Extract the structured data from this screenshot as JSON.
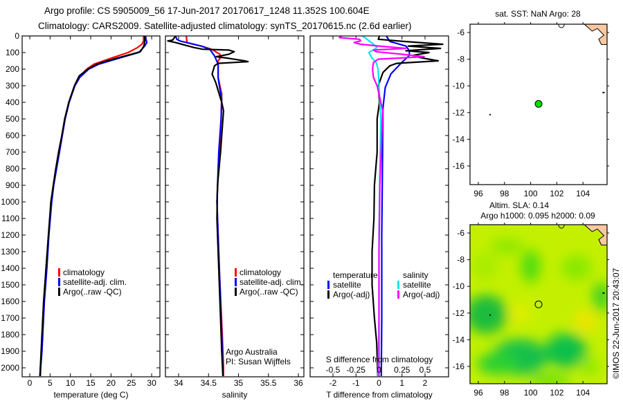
{
  "title": {
    "line1": "Argo profile: CS 5905009_56 17-Jun-2017 20170617_1248 11.352S 100.604E",
    "line2": "Climatology: CARS2009. Satellite-adjusted climatology: synTS_20170615.nc (2.6d earlier)"
  },
  "copyright": "©IMOS 22-Jun-2017 20:43:07",
  "chart_data": [
    {
      "id": "temperature",
      "type": "line",
      "xlabel": "temperature (deg C)",
      "ylabel": "",
      "xlim": [
        -1.9,
        32
      ],
      "ylim": [
        2060,
        0
      ],
      "xticks": [
        "0",
        "5",
        "10",
        "15",
        "20",
        "25",
        "30"
      ],
      "yticks": [
        "0",
        "100",
        "200",
        "300",
        "400",
        "500",
        "600",
        "700",
        "800",
        "900",
        "1000",
        "1100",
        "1200",
        "1300",
        "1400",
        "1500",
        "1600",
        "1700",
        "1800",
        "1900",
        "2000"
      ],
      "legend": [
        "climatology",
        "satellite-adj. clim.",
        "Argo(..raw -QC)"
      ],
      "series": [
        {
          "name": "climatology",
          "color": "#ff0000",
          "points": [
            [
              0,
              28.0
            ],
            [
              30,
              28.0
            ],
            [
              50,
              27.6
            ],
            [
              70,
              26.5
            ],
            [
              100,
              24.2
            ],
            [
              130,
              20.5
            ],
            [
              170,
              15.8
            ],
            [
              200,
              14.0
            ],
            [
              250,
              12.0
            ],
            [
              300,
              11.0
            ],
            [
              400,
              9.6
            ],
            [
              500,
              8.6
            ],
            [
              600,
              7.9
            ],
            [
              700,
              7.1
            ],
            [
              800,
              6.4
            ],
            [
              900,
              5.8
            ],
            [
              1000,
              5.3
            ],
            [
              1200,
              4.6
            ],
            [
              1400,
              4.0
            ],
            [
              1600,
              3.5
            ],
            [
              1800,
              3.1
            ],
            [
              1900,
              2.9
            ],
            [
              2000,
              2.6
            ],
            [
              2050,
              2.5
            ]
          ]
        },
        {
          "name": "satellite-adj. clim.",
          "color": "#0000ff",
          "points": [
            [
              0,
              28.5
            ],
            [
              20,
              28.6
            ],
            [
              40,
              28.8
            ],
            [
              60,
              28.3
            ],
            [
              80,
              27.6
            ],
            [
              100,
              26.8
            ],
            [
              130,
              22.5
            ],
            [
              170,
              17.0
            ],
            [
              200,
              14.5
            ],
            [
              250,
              12.3
            ],
            [
              300,
              11.1
            ],
            [
              400,
              9.7
            ],
            [
              500,
              8.7
            ],
            [
              600,
              8.0
            ],
            [
              700,
              7.3
            ],
            [
              800,
              6.6
            ],
            [
              900,
              5.9
            ],
            [
              1000,
              5.4
            ],
            [
              1200,
              4.7
            ],
            [
              1400,
              4.2
            ],
            [
              1600,
              3.6
            ],
            [
              1800,
              3.2
            ],
            [
              1900,
              3.0
            ],
            [
              2000,
              2.7
            ],
            [
              2050,
              2.6
            ]
          ]
        },
        {
          "name": "Argo(..raw -QC)",
          "color": "#000000",
          "points": [
            [
              0,
              28.3
            ],
            [
              30,
              28.3
            ],
            [
              60,
              28.1
            ],
            [
              80,
              27.6
            ],
            [
              95,
              27.2
            ],
            [
              110,
              25.0
            ],
            [
              130,
              22.0
            ],
            [
              150,
              19.0
            ],
            [
              170,
              16.5
            ],
            [
              200,
              14.3
            ],
            [
              240,
              12.2
            ],
            [
              300,
              11.0
            ],
            [
              400,
              9.6
            ],
            [
              500,
              8.6
            ],
            [
              600,
              7.9
            ],
            [
              700,
              7.1
            ],
            [
              800,
              6.4
            ],
            [
              900,
              5.8
            ],
            [
              1000,
              5.2
            ],
            [
              1200,
              4.6
            ],
            [
              1400,
              4.0
            ],
            [
              1600,
              3.4
            ],
            [
              1800,
              3.0
            ],
            [
              2000,
              2.6
            ],
            [
              2050,
              2.5
            ]
          ]
        }
      ]
    },
    {
      "id": "salinity",
      "type": "line",
      "xlabel": "salinity",
      "xlim": [
        33.78,
        36.1
      ],
      "ylim": [
        2060,
        0
      ],
      "xticks": [
        "34",
        "34.5",
        "35",
        "35.5",
        "36"
      ],
      "legend": [
        "climatology",
        "satellite-adj. clim.",
        "Argo(..raw -QC)"
      ],
      "annotation": [
        "Argo Australia",
        "PI: Susan Wijffels"
      ],
      "series": [
        {
          "name": "climatology",
          "color": "#ff0000",
          "points": [
            [
              0,
              34.13
            ],
            [
              40,
              34.14
            ],
            [
              50,
              34.25
            ],
            [
              60,
              34.37
            ],
            [
              80,
              34.55
            ],
            [
              110,
              34.69
            ],
            [
              130,
              34.7
            ],
            [
              150,
              34.66
            ],
            [
              250,
              34.66
            ],
            [
              350,
              34.72
            ],
            [
              500,
              34.71
            ],
            [
              700,
              34.68
            ],
            [
              1000,
              34.64
            ],
            [
              1400,
              34.68
            ],
            [
              1800,
              34.73
            ],
            [
              2000,
              34.75
            ],
            [
              2050,
              34.75
            ]
          ]
        },
        {
          "name": "satellite-adj. clim.",
          "color": "#0000ff",
          "points": [
            [
              0,
              33.95
            ],
            [
              20,
              33.97
            ],
            [
              30,
              34.02
            ],
            [
              60,
              34.37
            ],
            [
              80,
              34.52
            ],
            [
              120,
              34.6
            ],
            [
              170,
              34.66
            ],
            [
              250,
              34.66
            ],
            [
              300,
              34.68
            ],
            [
              380,
              34.72
            ],
            [
              500,
              34.71
            ],
            [
              700,
              34.67
            ],
            [
              1000,
              34.64
            ],
            [
              1400,
              34.68
            ],
            [
              1800,
              34.72
            ],
            [
              2000,
              34.74
            ],
            [
              2050,
              34.74
            ]
          ]
        },
        {
          "name": "Argo(..raw -QC)",
          "color": "#000000",
          "points": [
            [
              0,
              33.95
            ],
            [
              25,
              33.9
            ],
            [
              30,
              33.82
            ],
            [
              40,
              33.95
            ],
            [
              70,
              34.26
            ],
            [
              80,
              34.4
            ],
            [
              85,
              34.84
            ],
            [
              95,
              34.93
            ],
            [
              110,
              34.84
            ],
            [
              125,
              34.63
            ],
            [
              135,
              34.84
            ],
            [
              150,
              35.1
            ],
            [
              155,
              35.16
            ],
            [
              165,
              34.66
            ],
            [
              180,
              34.6
            ],
            [
              230,
              34.56
            ],
            [
              280,
              34.62
            ],
            [
              400,
              34.72
            ],
            [
              450,
              34.75
            ],
            [
              700,
              34.7
            ],
            [
              900,
              34.65
            ],
            [
              1100,
              34.64
            ],
            [
              1400,
              34.67
            ],
            [
              1900,
              34.72
            ],
            [
              2050,
              34.74
            ]
          ]
        }
      ]
    },
    {
      "id": "difference",
      "type": "line",
      "xlabel": "T difference from climatology",
      "x2label": "S difference from climatology",
      "xlim": [
        -3,
        3.1
      ],
      "x2lim": [
        -0.75,
        0.775
      ],
      "ylim": [
        2060,
        0
      ],
      "xticks": [
        "-2",
        "-1",
        "0",
        "1",
        "2"
      ],
      "x2ticks": [
        "-0.5",
        "-0.25",
        "0",
        "0.25",
        "0.5"
      ],
      "legend": {
        "temperature_label": "temperature",
        "salinity_label": "salinity",
        "temperature": [
          "satellite",
          "Argo(-adj)"
        ],
        "salinity": [
          "satellite",
          "Argo(-adj)"
        ]
      },
      "series": [
        {
          "name": "temperature satellite",
          "axis": "T",
          "color": "#0000ff",
          "points": [
            [
              0,
              0.32
            ],
            [
              33,
              0.47
            ],
            [
              61,
              1.17
            ],
            [
              89,
              1.32
            ],
            [
              117,
              1.32
            ],
            [
              158,
              1.0
            ],
            [
              228,
              0.52
            ],
            [
              311,
              0.27
            ],
            [
              436,
              0.17
            ],
            [
              783,
              0.15
            ],
            [
              1200,
              0.12
            ],
            [
              1700,
              0.12
            ],
            [
              2050,
              0.1
            ]
          ]
        },
        {
          "name": "temperature Argo(-adj)",
          "axis": "T",
          "color": "#000000",
          "points": [
            [
              0,
              0.02
            ],
            [
              20,
              -0.03
            ],
            [
              33,
              1.07
            ],
            [
              50,
              2.77
            ],
            [
              61,
              1.27
            ],
            [
              75,
              2.67
            ],
            [
              89,
              1.17
            ],
            [
              100,
              2.17
            ],
            [
              117,
              1.47
            ],
            [
              130,
              1.77
            ],
            [
              150,
              2.57
            ],
            [
              165,
              0.77
            ],
            [
              180,
              0.47
            ],
            [
              220,
              0.17
            ],
            [
              300,
              -0.03
            ],
            [
              400,
              0.02
            ],
            [
              500,
              -0.08
            ],
            [
              700,
              -0.08
            ],
            [
              900,
              -0.2
            ],
            [
              1100,
              -0.22
            ],
            [
              1300,
              -0.3
            ],
            [
              1500,
              -0.3
            ],
            [
              1700,
              -0.2
            ],
            [
              1850,
              -0.1
            ],
            [
              2050,
              -0.05
            ]
          ]
        },
        {
          "name": "salinity satellite",
          "axis": "S",
          "color": "#00e8e8",
          "points": [
            [
              0,
              -0.18
            ],
            [
              20,
              -0.13
            ],
            [
              50,
              -0.06
            ],
            [
              70,
              -0.02
            ],
            [
              100,
              -0.11
            ],
            [
              130,
              -0.08
            ],
            [
              160,
              -0.03
            ],
            [
              200,
              -0.01
            ],
            [
              300,
              0.0
            ],
            [
              500,
              0.02
            ],
            [
              800,
              0.01
            ],
            [
              1200,
              0.0
            ],
            [
              1700,
              0.0
            ],
            [
              2050,
              -0.01
            ]
          ]
        },
        {
          "name": "salinity Argo(-adj)",
          "axis": "S",
          "color": "#ff00ff",
          "points": [
            [
              0,
              -0.41
            ],
            [
              10,
              -0.43
            ],
            [
              20,
              -0.21
            ],
            [
              30,
              -0.2
            ],
            [
              40,
              -0.27
            ],
            [
              50,
              -0.2
            ],
            [
              60,
              -0.02
            ],
            [
              75,
              0.29
            ],
            [
              85,
              -0.06
            ],
            [
              95,
              -0.03
            ],
            [
              110,
              0.24
            ],
            [
              125,
              0.49
            ],
            [
              140,
              -0.01
            ],
            [
              160,
              -0.06
            ],
            [
              200,
              -0.07
            ],
            [
              250,
              -0.06
            ],
            [
              300,
              -0.02
            ],
            [
              450,
              0.04
            ],
            [
              600,
              0.03
            ],
            [
              900,
              0.01
            ],
            [
              1300,
              0.0
            ],
            [
              1800,
              0.0
            ],
            [
              2050,
              0.0
            ]
          ]
        }
      ]
    },
    {
      "id": "sst-map",
      "type": "scatter",
      "title": "sat. SST: NaN Argo: 28",
      "xlim": [
        95.4,
        105.9
      ],
      "ylim": [
        -17.4,
        -5.4
      ],
      "xticks": [
        "96",
        "98",
        "100",
        "102",
        "104"
      ],
      "yticks": [
        "-6",
        "-8",
        "-10",
        "-12",
        "-14",
        "-16"
      ],
      "float": {
        "lon": 100.604,
        "lat": -11.352
      }
    },
    {
      "id": "sla-map",
      "type": "heatmap",
      "title": [
        "Altim. SLA: 0.14",
        "Argo h1000: 0.095 h2000: 0.09"
      ],
      "xlim": [
        95.4,
        105.9
      ],
      "ylim": [
        -17.4,
        -5.4
      ],
      "xticks": [
        "96",
        "98",
        "100",
        "102",
        "104"
      ],
      "yticks": [
        "-6",
        "-8",
        "-10",
        "-12",
        "-14",
        "-16"
      ],
      "float": {
        "lon": 100.604,
        "lat": -11.352
      }
    }
  ]
}
